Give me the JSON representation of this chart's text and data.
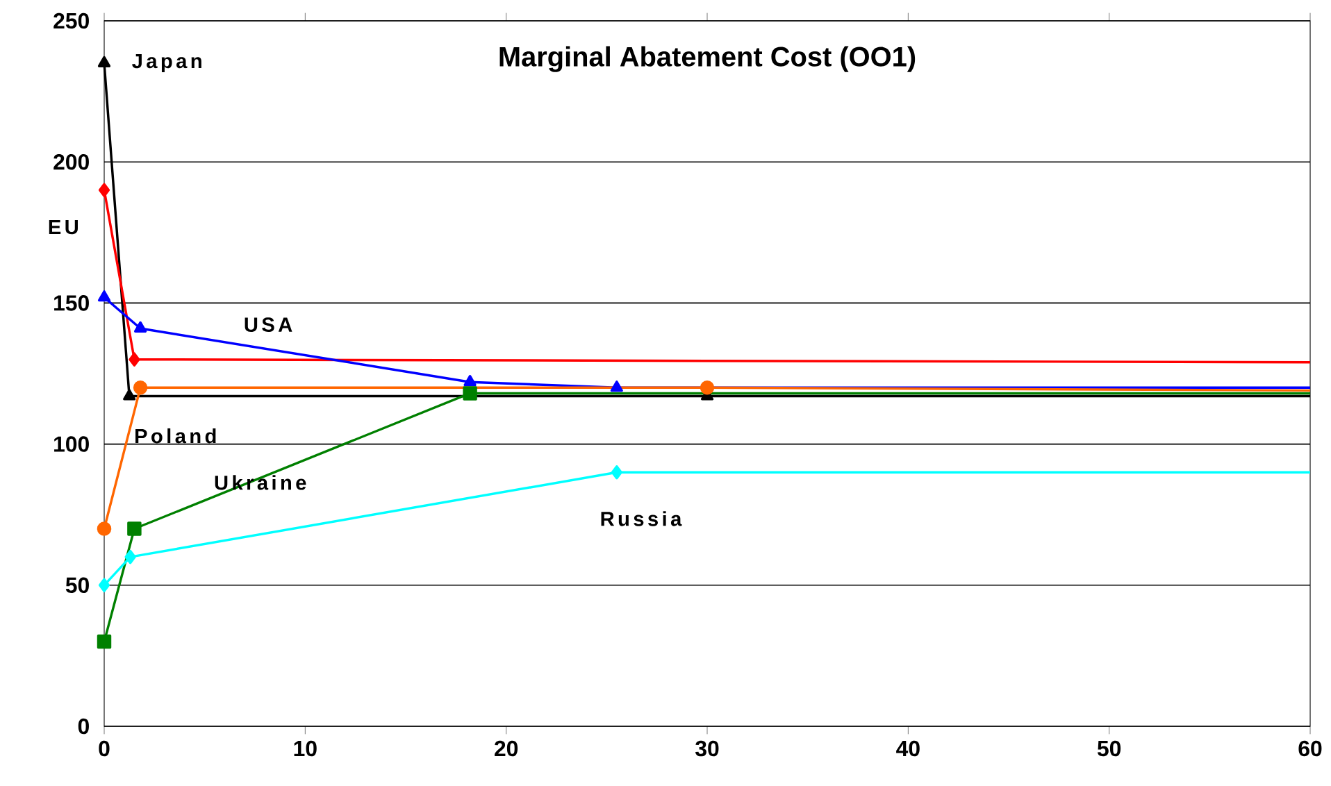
{
  "chart_data": {
    "type": "line",
    "title": "Marginal Abatement Cost (OO1)",
    "xlim": [
      0,
      60
    ],
    "ylim": [
      0,
      250
    ],
    "xticks": [
      0,
      10,
      20,
      30,
      40,
      50,
      60
    ],
    "yticks": [
      0,
      50,
      100,
      150,
      200,
      250
    ],
    "grid": "y",
    "legend": false,
    "line_style": "solid",
    "series": [
      {
        "name": "Japan",
        "color": "#000000",
        "marker": "triangle",
        "x": [
          0,
          1.25,
          30,
          60
        ],
        "values": [
          235,
          117,
          117,
          117
        ]
      },
      {
        "name": "EU",
        "color": "#ff0000",
        "marker": "diamond",
        "x": [
          0,
          1.5,
          60
        ],
        "values": [
          190,
          130,
          129
        ]
      },
      {
        "name": "USA",
        "color": "#0000ff",
        "marker": "triangle",
        "x": [
          0,
          1.8,
          18.2,
          25.5,
          60
        ],
        "values": [
          152,
          141,
          122,
          120,
          120
        ]
      },
      {
        "name": "Poland",
        "color": "#ff6600",
        "marker": "circle",
        "x": [
          0,
          1.8,
          30,
          60
        ],
        "values": [
          70,
          120,
          120,
          119
        ]
      },
      {
        "name": "Ukraine",
        "color": "#008000",
        "marker": "square",
        "x": [
          0,
          1.5,
          18.2,
          60
        ],
        "values": [
          30,
          70,
          118,
          118
        ]
      },
      {
        "name": "Russia",
        "color": "#00ffff",
        "marker": "diamond",
        "x": [
          0,
          1.3,
          25.5,
          60
        ],
        "values": [
          50,
          60,
          90,
          90
        ]
      }
    ]
  }
}
